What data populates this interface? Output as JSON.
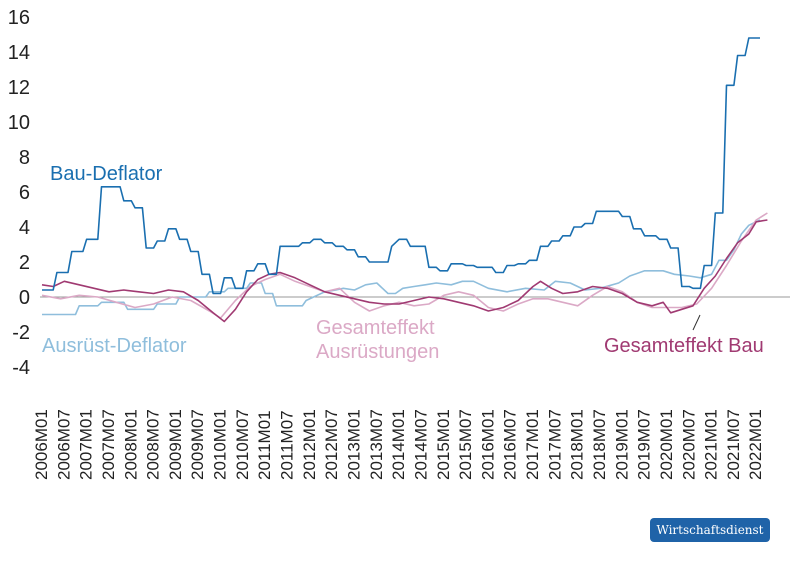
{
  "chart_data": {
    "type": "line",
    "title": "",
    "xlabel": "",
    "ylabel": "",
    "ylim": [
      -4,
      16
    ],
    "yticks": [
      -4,
      -2,
      0,
      2,
      4,
      6,
      8,
      10,
      12,
      14,
      16
    ],
    "x_tick_labels": [
      "2006M01",
      "2006M07",
      "2007M01",
      "2007M07",
      "2008M01",
      "2008M07",
      "2009M01",
      "2009M07",
      "2010M01",
      "2010M07",
      "2011M01",
      "2011M07",
      "2012M01",
      "2012M07",
      "2013M01",
      "2013M07",
      "2014M01",
      "2014M07",
      "2015M01",
      "2015M07",
      "2016M01",
      "2016M07",
      "2017M01",
      "2017M07",
      "2018M01",
      "2018M07",
      "2019M01",
      "2019M07",
      "2020M01",
      "2020M07",
      "2021M01",
      "2021M07",
      "2022M01"
    ],
    "n_months": 202,
    "grid": false,
    "zero_line": true,
    "series": [
      {
        "name": "Bau-Deflator",
        "color": "#1a6fb0",
        "step": true,
        "points": [
          [
            0,
            0.4
          ],
          [
            3,
            0.4
          ],
          [
            4,
            1.4
          ],
          [
            7,
            1.4
          ],
          [
            8,
            2.6
          ],
          [
            11,
            2.6
          ],
          [
            12,
            3.3
          ],
          [
            15,
            3.3
          ],
          [
            16,
            6.3
          ],
          [
            20,
            6.3
          ],
          [
            21,
            6.3
          ],
          [
            22,
            5.5
          ],
          [
            24,
            5.5
          ],
          [
            25,
            5.1
          ],
          [
            27,
            5.1
          ],
          [
            28,
            2.8
          ],
          [
            30,
            2.8
          ],
          [
            31,
            3.2
          ],
          [
            33,
            3.2
          ],
          [
            34,
            3.9
          ],
          [
            36,
            3.9
          ],
          [
            37,
            3.3
          ],
          [
            39,
            3.3
          ],
          [
            40,
            2.6
          ],
          [
            42,
            2.6
          ],
          [
            43,
            1.3
          ],
          [
            45,
            1.3
          ],
          [
            46,
            0.2
          ],
          [
            48,
            0.2
          ],
          [
            49,
            1.1
          ],
          [
            51,
            1.1
          ],
          [
            52,
            0.5
          ],
          [
            54,
            0.5
          ],
          [
            55,
            1.5
          ],
          [
            57,
            1.5
          ],
          [
            58,
            1.9
          ],
          [
            60,
            1.9
          ],
          [
            61,
            1.3
          ],
          [
            63,
            1.3
          ],
          [
            64,
            2.9
          ],
          [
            69,
            2.9
          ],
          [
            70,
            3.1
          ],
          [
            72,
            3.1
          ],
          [
            73,
            3.3
          ],
          [
            75,
            3.3
          ],
          [
            76,
            3.1
          ],
          [
            78,
            3.1
          ],
          [
            79,
            2.9
          ],
          [
            81,
            2.9
          ],
          [
            82,
            2.7
          ],
          [
            84,
            2.7
          ],
          [
            85,
            2.3
          ],
          [
            87,
            2.3
          ],
          [
            88,
            2.0
          ],
          [
            93,
            2.0
          ],
          [
            94,
            2.9
          ],
          [
            96,
            3.3
          ],
          [
            98,
            3.3
          ],
          [
            99,
            2.9
          ],
          [
            103,
            2.9
          ],
          [
            104,
            1.7
          ],
          [
            106,
            1.7
          ],
          [
            107,
            1.5
          ],
          [
            109,
            1.5
          ],
          [
            110,
            1.9
          ],
          [
            113,
            1.9
          ],
          [
            114,
            1.8
          ],
          [
            116,
            1.8
          ],
          [
            117,
            1.7
          ],
          [
            121,
            1.7
          ],
          [
            122,
            1.4
          ],
          [
            124,
            1.4
          ],
          [
            125,
            1.8
          ],
          [
            127,
            1.8
          ],
          [
            128,
            1.9
          ],
          [
            130,
            1.9
          ],
          [
            131,
            2.1
          ],
          [
            133,
            2.1
          ],
          [
            134,
            2.9
          ],
          [
            136,
            2.9
          ],
          [
            137,
            3.2
          ],
          [
            139,
            3.2
          ],
          [
            140,
            3.5
          ],
          [
            142,
            3.5
          ],
          [
            143,
            4.0
          ],
          [
            145,
            4.0
          ],
          [
            146,
            4.2
          ],
          [
            148,
            4.2
          ],
          [
            149,
            4.9
          ],
          [
            155,
            4.9
          ],
          [
            156,
            4.6
          ],
          [
            158,
            4.6
          ],
          [
            159,
            3.9
          ],
          [
            161,
            3.9
          ],
          [
            162,
            3.5
          ],
          [
            165,
            3.5
          ],
          [
            166,
            3.3
          ],
          [
            168,
            3.3
          ],
          [
            169,
            2.8
          ],
          [
            171,
            2.8
          ],
          [
            172,
            0.6
          ],
          [
            174,
            0.6
          ],
          [
            175,
            0.5
          ],
          [
            177,
            0.5
          ],
          [
            178,
            1.8
          ],
          [
            180,
            1.8
          ],
          [
            181,
            4.8
          ],
          [
            183,
            4.8
          ],
          [
            184,
            12.1
          ],
          [
            186,
            12.1
          ],
          [
            187,
            13.8
          ],
          [
            189,
            13.8
          ],
          [
            190,
            14.8
          ],
          [
            193,
            14.8
          ]
        ]
      },
      {
        "name": "Ausrüst-Deflator",
        "color": "#8fbedc",
        "step": true,
        "points": [
          [
            0,
            -1.0
          ],
          [
            9,
            -1.0
          ],
          [
            10,
            -0.5
          ],
          [
            15,
            -0.5
          ],
          [
            16,
            -0.3
          ],
          [
            22,
            -0.3
          ],
          [
            23,
            -0.7
          ],
          [
            30,
            -0.7
          ],
          [
            31,
            -0.4
          ],
          [
            36,
            -0.4
          ],
          [
            37,
            0.0
          ],
          [
            44,
            0.0
          ],
          [
            45,
            0.3
          ],
          [
            49,
            0.3
          ],
          [
            50,
            0.5
          ],
          [
            55,
            0.5
          ],
          [
            56,
            0.8
          ],
          [
            59,
            0.8
          ],
          [
            60,
            0.2
          ],
          [
            62,
            0.2
          ],
          [
            63,
            -0.5
          ],
          [
            70,
            -0.5
          ],
          [
            71,
            -0.2
          ],
          [
            73,
            0.0
          ],
          [
            76,
            0.3
          ],
          [
            79,
            0.4
          ],
          [
            81,
            0.5
          ],
          [
            84,
            0.4
          ],
          [
            87,
            0.7
          ],
          [
            90,
            0.8
          ],
          [
            93,
            0.2
          ],
          [
            95,
            0.2
          ],
          [
            97,
            0.5
          ],
          [
            100,
            0.6
          ],
          [
            103,
            0.7
          ],
          [
            106,
            0.8
          ],
          [
            110,
            0.7
          ],
          [
            113,
            0.9
          ],
          [
            116,
            0.9
          ],
          [
            120,
            0.5
          ],
          [
            125,
            0.3
          ],
          [
            130,
            0.5
          ],
          [
            135,
            0.4
          ],
          [
            138,
            0.9
          ],
          [
            142,
            0.8
          ],
          [
            146,
            0.4
          ],
          [
            150,
            0.5
          ],
          [
            155,
            0.8
          ],
          [
            158,
            1.2
          ],
          [
            162,
            1.5
          ],
          [
            167,
            1.5
          ],
          [
            170,
            1.3
          ],
          [
            174,
            1.2
          ],
          [
            177,
            1.1
          ],
          [
            180,
            1.3
          ],
          [
            182,
            2.1
          ],
          [
            184,
            2.1
          ],
          [
            186,
            2.7
          ],
          [
            188,
            3.6
          ],
          [
            190,
            4.1
          ],
          [
            193,
            4.4
          ]
        ]
      },
      {
        "name": "Gesamteffekt Ausrüstungen",
        "color": "#dba9c6",
        "step": false,
        "points": [
          [
            0,
            0.1
          ],
          [
            5,
            -0.1
          ],
          [
            10,
            0.1
          ],
          [
            15,
            0.0
          ],
          [
            20,
            -0.3
          ],
          [
            25,
            -0.6
          ],
          [
            30,
            -0.4
          ],
          [
            35,
            0.0
          ],
          [
            40,
            -0.2
          ],
          [
            45,
            -0.8
          ],
          [
            48,
            -1.2
          ],
          [
            52,
            -0.2
          ],
          [
            56,
            0.6
          ],
          [
            60,
            1.0
          ],
          [
            64,
            1.3
          ],
          [
            68,
            0.9
          ],
          [
            72,
            0.6
          ],
          [
            76,
            0.3
          ],
          [
            80,
            0.5
          ],
          [
            84,
            -0.3
          ],
          [
            88,
            -0.8
          ],
          [
            92,
            -0.5
          ],
          [
            96,
            -0.3
          ],
          [
            100,
            -0.5
          ],
          [
            104,
            -0.4
          ],
          [
            108,
            0.1
          ],
          [
            112,
            0.3
          ],
          [
            116,
            0.1
          ],
          [
            120,
            -0.6
          ],
          [
            124,
            -0.8
          ],
          [
            128,
            -0.4
          ],
          [
            132,
            -0.1
          ],
          [
            136,
            -0.1
          ],
          [
            140,
            -0.3
          ],
          [
            144,
            -0.5
          ],
          [
            148,
            0.1
          ],
          [
            152,
            0.6
          ],
          [
            156,
            0.3
          ],
          [
            160,
            -0.3
          ],
          [
            164,
            -0.6
          ],
          [
            168,
            -0.6
          ],
          [
            172,
            -0.6
          ],
          [
            176,
            -0.4
          ],
          [
            180,
            0.5
          ],
          [
            184,
            1.8
          ],
          [
            188,
            3.2
          ],
          [
            192,
            4.4
          ],
          [
            195,
            4.8
          ]
        ]
      },
      {
        "name": "Gesamteffekt Bau",
        "color": "#a03a72",
        "step": false,
        "points": [
          [
            0,
            0.7
          ],
          [
            3,
            0.6
          ],
          [
            6,
            0.9
          ],
          [
            10,
            0.7
          ],
          [
            14,
            0.5
          ],
          [
            18,
            0.3
          ],
          [
            22,
            0.4
          ],
          [
            26,
            0.3
          ],
          [
            30,
            0.2
          ],
          [
            34,
            0.4
          ],
          [
            38,
            0.3
          ],
          [
            42,
            -0.2
          ],
          [
            46,
            -0.9
          ],
          [
            49,
            -1.4
          ],
          [
            52,
            -0.7
          ],
          [
            55,
            0.3
          ],
          [
            58,
            1.0
          ],
          [
            61,
            1.3
          ],
          [
            64,
            1.4
          ],
          [
            68,
            1.1
          ],
          [
            72,
            0.7
          ],
          [
            76,
            0.3
          ],
          [
            80,
            0.1
          ],
          [
            84,
            -0.1
          ],
          [
            88,
            -0.3
          ],
          [
            92,
            -0.4
          ],
          [
            96,
            -0.4
          ],
          [
            100,
            -0.2
          ],
          [
            104,
            0.0
          ],
          [
            108,
            -0.1
          ],
          [
            112,
            -0.3
          ],
          [
            116,
            -0.5
          ],
          [
            120,
            -0.8
          ],
          [
            124,
            -0.6
          ],
          [
            128,
            -0.2
          ],
          [
            132,
            0.6
          ],
          [
            134,
            0.9
          ],
          [
            137,
            0.5
          ],
          [
            140,
            0.2
          ],
          [
            144,
            0.3
          ],
          [
            148,
            0.6
          ],
          [
            152,
            0.5
          ],
          [
            156,
            0.2
          ],
          [
            160,
            -0.3
          ],
          [
            164,
            -0.5
          ],
          [
            167,
            -0.3
          ],
          [
            169,
            -0.9
          ],
          [
            172,
            -0.7
          ],
          [
            175,
            -0.5
          ],
          [
            178,
            0.5
          ],
          [
            181,
            1.2
          ],
          [
            184,
            2.2
          ],
          [
            187,
            3.1
          ],
          [
            190,
            3.6
          ],
          [
            192,
            4.3
          ],
          [
            195,
            4.4
          ]
        ]
      }
    ],
    "labels": {
      "bau_deflator": "Bau-Deflator",
      "ausruest_deflator": "Ausrüst-Deflator",
      "gesamteffekt_ausruestungen_line1": "Gesamteffekt",
      "gesamteffekt_ausruestungen_line2": "Ausrüstungen",
      "gesamteffekt_bau": "Gesamteffekt Bau"
    }
  },
  "brand": {
    "badge_text": "Wirtschaftsdienst",
    "badge_color": "#1f63a8"
  }
}
